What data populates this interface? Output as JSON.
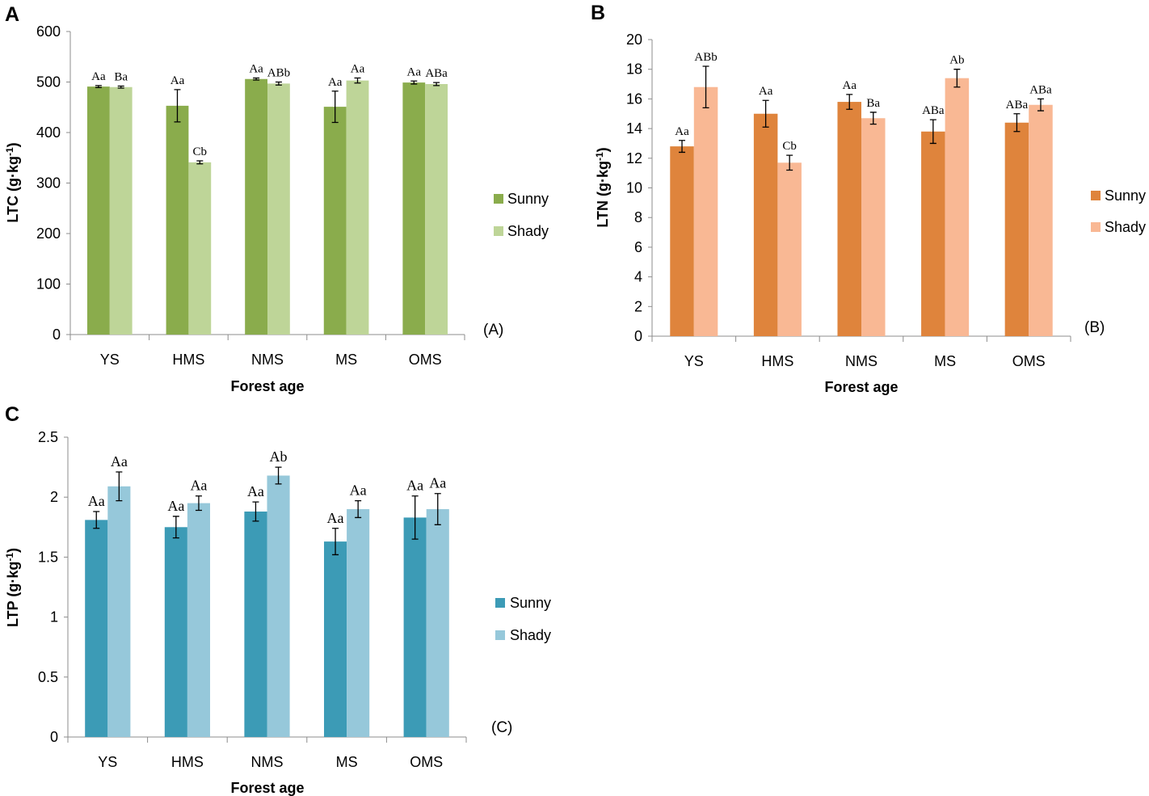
{
  "chart_data": [
    {
      "type": "bar",
      "panel": "A",
      "corner_label": "(A)",
      "ylabel": "LTC (g·kg-1)",
      "ylabel_main": "LTC (g·kg",
      "ylabel_sup": "-1",
      "ylabel_close": ")",
      "xlabel": "Forest age",
      "ylim": [
        0,
        600
      ],
      "yticks": [
        0,
        100,
        200,
        300,
        400,
        500,
        600
      ],
      "ytick_labels": [
        "0",
        "100",
        "200",
        "300",
        "400",
        "500",
        "600"
      ],
      "categories": [
        "YS",
        "HMS",
        "NMS",
        "MS",
        "OMS"
      ],
      "series": [
        {
          "name": "Sunny",
          "color": "#8aac4c",
          "values": [
            491,
            453,
            506,
            451,
            499
          ],
          "errors": [
            2,
            32,
            2,
            31,
            3
          ],
          "labels": [
            "Aa",
            "Aa",
            "Aa",
            "Aa",
            "Aa"
          ]
        },
        {
          "name": "Shady",
          "color": "#bed598",
          "values": [
            490,
            341,
            497,
            503,
            496
          ],
          "errors": [
            2,
            3,
            3,
            5,
            3
          ],
          "labels": [
            "Ba",
            "Cb",
            "ABb",
            "Aa",
            "ABa"
          ]
        }
      ]
    },
    {
      "type": "bar",
      "panel": "B",
      "corner_label": "(B)",
      "ylabel": "LTN (g·kg-1)",
      "ylabel_main": "LTN (g·kg",
      "ylabel_sup": "-1",
      "ylabel_close": ")",
      "xlabel": "Forest age",
      "ylim": [
        0,
        20
      ],
      "yticks": [
        0,
        2,
        4,
        6,
        8,
        10,
        12,
        14,
        16,
        18,
        20
      ],
      "ytick_labels": [
        "0",
        "2",
        "4",
        "6",
        "8",
        "10",
        "12",
        "14",
        "16",
        "18",
        "20"
      ],
      "categories": [
        "YS",
        "HMS",
        "NMS",
        "MS",
        "OMS"
      ],
      "series": [
        {
          "name": "Sunny",
          "color": "#df843c",
          "values": [
            12.8,
            15.0,
            15.8,
            13.8,
            14.4
          ],
          "errors": [
            0.4,
            0.9,
            0.5,
            0.8,
            0.6
          ],
          "labels": [
            "Aa",
            "Aa",
            "Aa",
            "ABa",
            "ABa"
          ]
        },
        {
          "name": "Shady",
          "color": "#f9b894",
          "values": [
            16.8,
            11.7,
            14.7,
            17.4,
            15.6
          ],
          "errors": [
            1.4,
            0.5,
            0.4,
            0.6,
            0.4
          ],
          "labels": [
            "ABb",
            "Cb",
            "Ba",
            "Ab",
            "ABa"
          ]
        }
      ]
    },
    {
      "type": "bar",
      "panel": "C",
      "corner_label": "(C)",
      "ylabel": "LTP (g·kg-1)",
      "ylabel_main": "LTP (g·kg",
      "ylabel_sup": "-1",
      "ylabel_close": ")",
      "xlabel": "Forest age",
      "ylim": [
        0,
        2.5
      ],
      "yticks": [
        0,
        0.5,
        1,
        1.5,
        2,
        2.5
      ],
      "ytick_labels": [
        "0",
        "0.5",
        "1",
        "1.5",
        "2",
        "2.5"
      ],
      "categories": [
        "YS",
        "HMS",
        "NMS",
        "MS",
        "OMS"
      ],
      "series": [
        {
          "name": "Sunny",
          "color": "#3c9bb6",
          "values": [
            1.81,
            1.75,
            1.88,
            1.63,
            1.83
          ],
          "errors": [
            0.07,
            0.09,
            0.08,
            0.11,
            0.18
          ],
          "labels": [
            "Aa",
            "Aa",
            "Aa",
            "Aa",
            "Aa"
          ]
        },
        {
          "name": "Shady",
          "color": "#96c8da",
          "values": [
            2.09,
            1.95,
            2.18,
            1.9,
            1.9
          ],
          "errors": [
            0.12,
            0.06,
            0.07,
            0.07,
            0.13
          ],
          "labels": [
            "Aa",
            "Aa",
            "Ab",
            "Aa",
            "Aa"
          ]
        }
      ]
    }
  ]
}
